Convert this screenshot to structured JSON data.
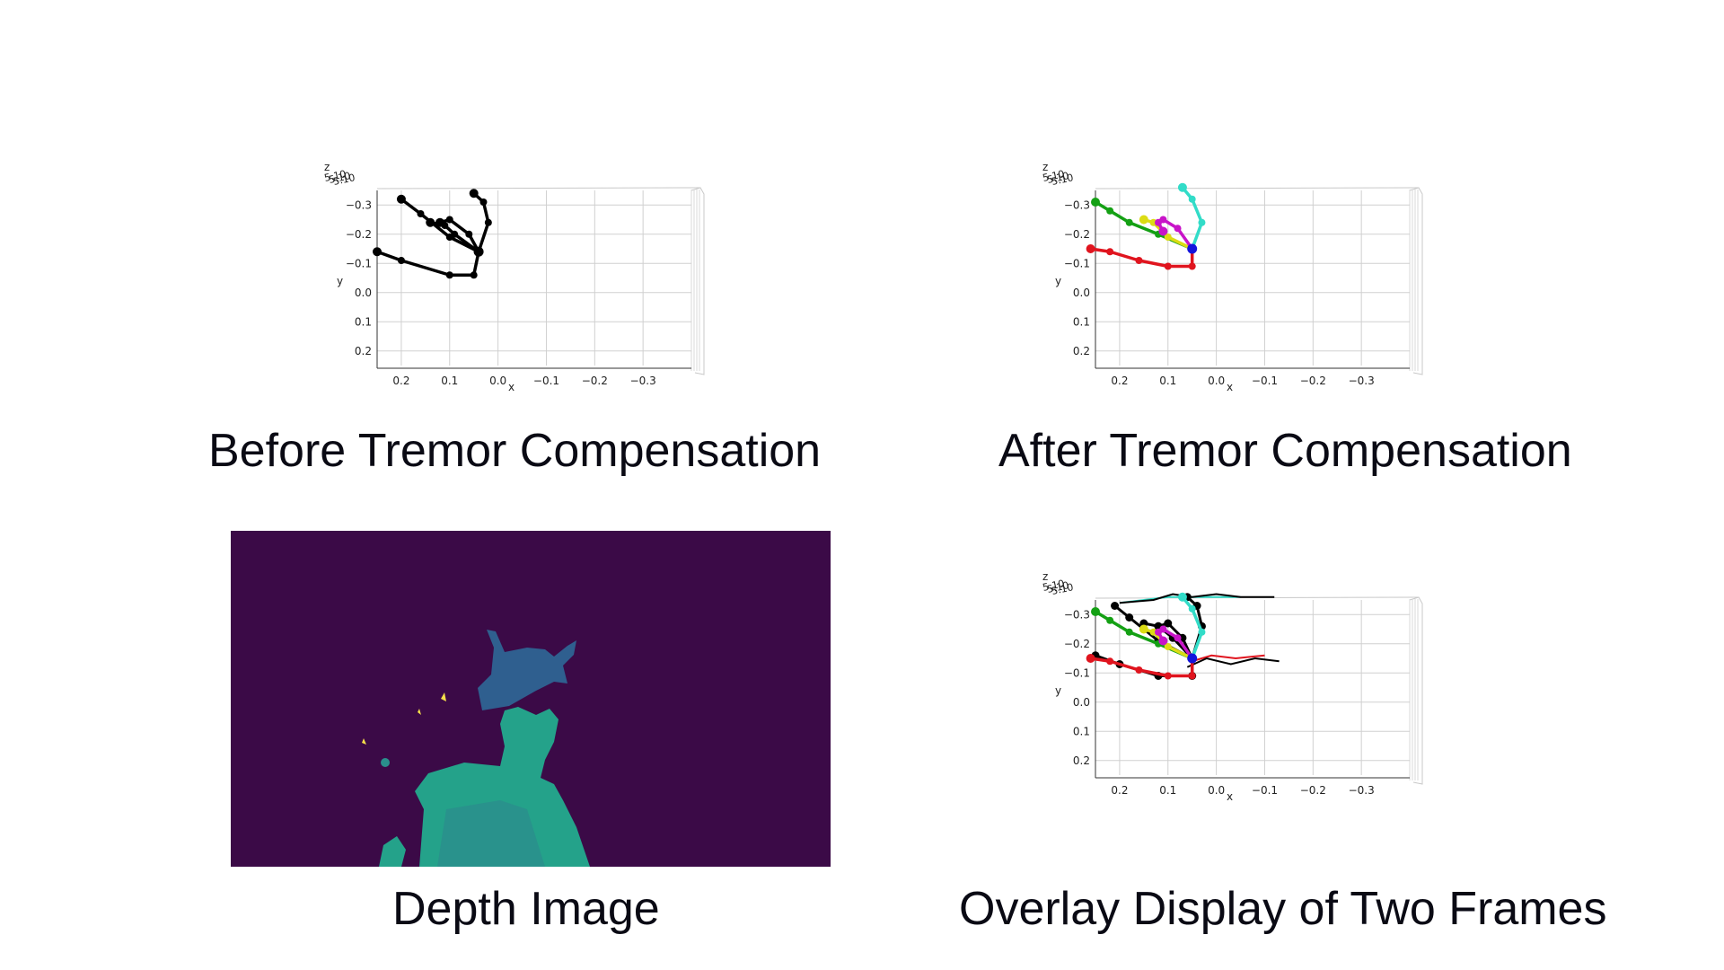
{
  "captions": {
    "before": "Before Tremor Compensation",
    "after": "After Tremor Compensation",
    "depth": "Depth Image",
    "overlay": "Overlay Display of Two Frames"
  },
  "colors": {
    "thumb": "#e0141e",
    "index": "#14a014",
    "middle": "#dcdc14",
    "ring": "#c814c8",
    "pinky": "#32dcc8",
    "wrist": "#1414dc",
    "raw": "#000000",
    "depth_background": "#3b0a47",
    "depth_hand": "#2f5f8f",
    "depth_body": "#24a28a",
    "depth_near": "#f5e04a"
  },
  "chart_data": [
    {
      "id": "before",
      "type": "scatter",
      "subtype": "3d-skeleton",
      "title": "",
      "xlabel": "x",
      "ylabel": "y",
      "zlabel": "z",
      "xlim": [
        0.25,
        -0.4
      ],
      "ylim": [
        -0.35,
        0.25
      ],
      "x_ticks": [
        "0.2",
        "0.1",
        "0.0",
        "−0.1",
        "−0.2",
        "−0.3"
      ],
      "y_ticks": [
        "−0.3",
        "−0.2",
        "−0.1",
        "0.0",
        "0.1",
        "0.2"
      ],
      "z_tick_labels": "5.10",
      "colored": false,
      "series": [
        {
          "finger": "thumb",
          "x": [
            0.04,
            0.05,
            0.1,
            0.2,
            0.25
          ],
          "y": [
            -0.14,
            -0.06,
            -0.06,
            -0.11,
            -0.14
          ]
        },
        {
          "finger": "index",
          "x": [
            0.04,
            0.1,
            0.16,
            0.2
          ],
          "y": [
            -0.14,
            -0.19,
            -0.27,
            -0.32
          ]
        },
        {
          "finger": "middle",
          "x": [
            0.04,
            0.09,
            0.11,
            0.14
          ],
          "y": [
            -0.14,
            -0.2,
            -0.23,
            -0.24
          ]
        },
        {
          "finger": "ring",
          "x": [
            0.04,
            0.06,
            0.1,
            0.12
          ],
          "y": [
            -0.14,
            -0.2,
            -0.25,
            -0.24
          ]
        },
        {
          "finger": "pinky",
          "x": [
            0.04,
            0.02,
            0.03,
            0.05
          ],
          "y": [
            -0.14,
            -0.24,
            -0.31,
            -0.34
          ]
        }
      ]
    },
    {
      "id": "after",
      "type": "scatter",
      "subtype": "3d-skeleton",
      "title": "",
      "xlabel": "x",
      "ylabel": "y",
      "zlabel": "z",
      "xlim": [
        0.25,
        -0.4
      ],
      "ylim": [
        -0.35,
        0.25
      ],
      "x_ticks": [
        "0.2",
        "0.1",
        "0.0",
        "−0.1",
        "−0.2",
        "−0.3"
      ],
      "y_ticks": [
        "−0.3",
        "−0.2",
        "−0.1",
        "0.0",
        "0.1",
        "0.2"
      ],
      "z_tick_labels": "5.10",
      "colored": true,
      "series": [
        {
          "finger": "thumb",
          "x": [
            0.05,
            0.05,
            0.1,
            0.16,
            0.22,
            0.26
          ],
          "y": [
            -0.15,
            -0.09,
            -0.09,
            -0.11,
            -0.14,
            -0.15
          ]
        },
        {
          "finger": "index",
          "x": [
            0.05,
            0.12,
            0.18,
            0.22,
            0.25
          ],
          "y": [
            -0.15,
            -0.2,
            -0.24,
            -0.28,
            -0.31
          ]
        },
        {
          "finger": "middle",
          "x": [
            0.05,
            0.1,
            0.13,
            0.15
          ],
          "y": [
            -0.15,
            -0.19,
            -0.24,
            -0.25
          ]
        },
        {
          "finger": "ring",
          "x": [
            0.05,
            0.08,
            0.11,
            0.12,
            0.11
          ],
          "y": [
            -0.15,
            -0.22,
            -0.25,
            -0.24,
            -0.21
          ]
        },
        {
          "finger": "pinky",
          "x": [
            0.05,
            0.03,
            0.05,
            0.07
          ],
          "y": [
            -0.15,
            -0.24,
            -0.32,
            -0.36
          ]
        }
      ]
    },
    {
      "id": "overlay",
      "type": "scatter",
      "subtype": "3d-skeleton",
      "title": "",
      "xlabel": "x",
      "ylabel": "y",
      "zlabel": "z",
      "xlim": [
        0.25,
        -0.4
      ],
      "ylim": [
        -0.35,
        0.25
      ],
      "x_ticks": [
        "0.2",
        "0.1",
        "0.0",
        "−0.1",
        "−0.2",
        "−0.3"
      ],
      "y_ticks": [
        "−0.3",
        "−0.2",
        "−0.1",
        "0.0",
        "0.1",
        "0.2"
      ],
      "z_tick_labels": "5.10",
      "colored": true,
      "series": [
        {
          "finger": "thumb",
          "x": [
            0.05,
            0.05,
            0.1,
            0.16,
            0.22,
            0.26
          ],
          "y": [
            -0.15,
            -0.09,
            -0.09,
            -0.11,
            -0.14,
            -0.15
          ]
        },
        {
          "finger": "index",
          "x": [
            0.05,
            0.12,
            0.18,
            0.22,
            0.25
          ],
          "y": [
            -0.15,
            -0.2,
            -0.24,
            -0.28,
            -0.31
          ]
        },
        {
          "finger": "middle",
          "x": [
            0.05,
            0.1,
            0.13,
            0.15
          ],
          "y": [
            -0.15,
            -0.19,
            -0.24,
            -0.25
          ]
        },
        {
          "finger": "ring",
          "x": [
            0.05,
            0.08,
            0.11,
            0.12,
            0.11
          ],
          "y": [
            -0.15,
            -0.22,
            -0.25,
            -0.24,
            -0.21
          ]
        },
        {
          "finger": "pinky",
          "x": [
            0.05,
            0.03,
            0.05,
            0.07
          ],
          "y": [
            -0.15,
            -0.24,
            -0.32,
            -0.36
          ]
        }
      ],
      "raw_series": [
        {
          "finger": "thumb",
          "x": [
            0.05,
            0.05,
            0.12,
            0.2,
            0.25
          ],
          "y": [
            -0.15,
            -0.09,
            -0.09,
            -0.13,
            -0.16
          ]
        },
        {
          "finger": "index",
          "x": [
            0.05,
            0.12,
            0.18,
            0.21
          ],
          "y": [
            -0.15,
            -0.21,
            -0.29,
            -0.33
          ]
        },
        {
          "finger": "middle",
          "x": [
            0.05,
            0.09,
            0.12,
            0.15
          ],
          "y": [
            -0.15,
            -0.22,
            -0.26,
            -0.27
          ]
        },
        {
          "finger": "ring",
          "x": [
            0.05,
            0.07,
            0.1,
            0.12
          ],
          "y": [
            -0.15,
            -0.22,
            -0.27,
            -0.26
          ]
        },
        {
          "finger": "pinky",
          "x": [
            0.05,
            0.03,
            0.04,
            0.06
          ],
          "y": [
            -0.15,
            -0.26,
            -0.33,
            -0.36
          ]
        }
      ],
      "trace_series": [
        {
          "color_key": "pinky",
          "x": [
            0.2,
            0.15,
            0.1,
            0.05,
            0.0,
            -0.05
          ],
          "y": [
            -0.34,
            -0.35,
            -0.36,
            -0.36,
            -0.36,
            -0.36
          ]
        },
        {
          "color_key": "raw",
          "x": [
            0.2,
            0.13,
            0.09,
            0.05,
            0.0,
            -0.05,
            -0.12
          ],
          "y": [
            -0.34,
            -0.35,
            -0.37,
            -0.36,
            -0.37,
            -0.36,
            -0.36
          ]
        },
        {
          "color_key": "thumb",
          "x": [
            0.05,
            0.01,
            -0.04,
            -0.1
          ],
          "y": [
            -0.14,
            -0.16,
            -0.15,
            -0.16
          ]
        },
        {
          "color_key": "raw",
          "x": [
            0.06,
            0.02,
            -0.03,
            -0.08,
            -0.13
          ],
          "y": [
            -0.12,
            -0.15,
            -0.13,
            -0.15,
            -0.14
          ]
        }
      ]
    }
  ]
}
